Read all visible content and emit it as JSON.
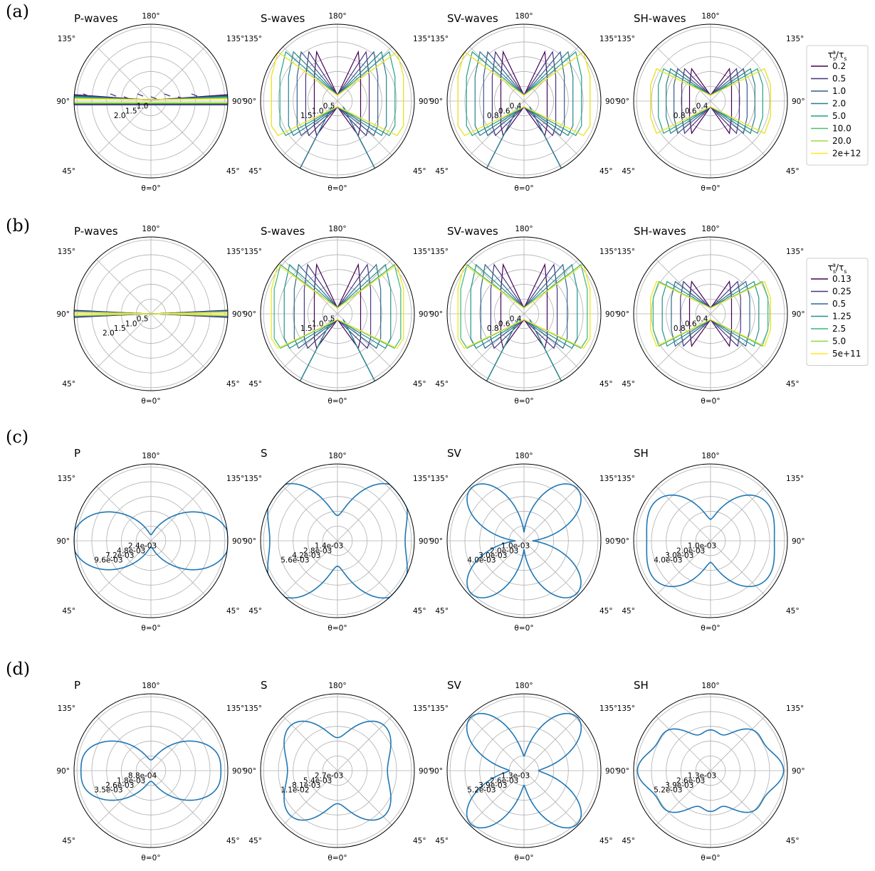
{
  "theta_label": "θ=0°",
  "angle_labels": {
    "top": "180°",
    "left": "90°",
    "right": "90°",
    "ul": "135°",
    "ur": "135°",
    "ll": "45°",
    "lr": "45°"
  },
  "rows": [
    {
      "label": "(a)",
      "legend": {
        "title": "τsa/τs",
        "entries": [
          "0.2",
          "0.5",
          "1.0",
          "2.0",
          "5.0",
          "10.0",
          "20.0",
          "2e+12"
        ],
        "colors": [
          "#440154",
          "#46327e",
          "#365c8d",
          "#277f8e",
          "#1fa187",
          "#4ac16d",
          "#9fda3a",
          "#fde725"
        ]
      },
      "panels": [
        {
          "title": "P-waves",
          "ticks": [
            "1.0",
            "1.5",
            "2.0"
          ],
          "kind": "p_waves",
          "rmax": 2.2
        },
        {
          "title": "S-waves",
          "ticks": [
            "0.5",
            "1.0",
            "1.5"
          ],
          "kind": "s_waves",
          "rmax": 1.8
        },
        {
          "title": "SV-waves",
          "ticks": [
            "0.4",
            "0.6",
            "0.8"
          ],
          "kind": "s_waves",
          "rmax": 1.0
        },
        {
          "title": "SH-waves",
          "ticks": [
            "0.4",
            "0.6",
            "0.8"
          ],
          "kind": "sh_waves",
          "rmax": 1.0
        }
      ]
    },
    {
      "label": "(b)",
      "legend": {
        "title": "τsa/τs",
        "entries": [
          "0.13",
          "0.25",
          "0.5",
          "1.25",
          "2.5",
          "5.0",
          "5e+11"
        ],
        "colors": [
          "#440154",
          "#443983",
          "#31688e",
          "#21918c",
          "#35b779",
          "#90d743",
          "#fde725"
        ]
      },
      "panels": [
        {
          "title": "P-waves",
          "ticks": [
            "0.5",
            "1.0",
            "1.5",
            "2.0"
          ],
          "kind": "p_flat",
          "rmax": 2.2
        },
        {
          "title": "S-waves",
          "ticks": [
            "0.5",
            "1.0",
            "1.5"
          ],
          "kind": "s_waves",
          "rmax": 1.8
        },
        {
          "title": "SV-waves",
          "ticks": [
            "0.4",
            "0.6",
            "0.8"
          ],
          "kind": "s_waves",
          "rmax": 1.0
        },
        {
          "title": "SH-waves",
          "ticks": [
            "0.4",
            "0.6",
            "0.8"
          ],
          "kind": "sh_waves",
          "rmax": 1.0
        }
      ]
    },
    {
      "label": "(c)",
      "panels": [
        {
          "title": "P",
          "ticks": [
            "2.4e-03",
            "4.8e-03",
            "7.2e-03",
            "9.6e-03"
          ],
          "kind": "p_lobe",
          "rmax": 0.0098
        },
        {
          "title": "S",
          "ticks": [
            "1.4e-03",
            "2.8e-03",
            "4.2e-03",
            "5.6e-03"
          ],
          "kind": "s_lobe",
          "rmax": 0.0062
        },
        {
          "title": "SV",
          "ticks": [
            "1.0e-03",
            "2.0e-03",
            "3.0e-03",
            "4.0e-03"
          ],
          "kind": "sv_lobe",
          "rmax": 0.0048
        },
        {
          "title": "SH",
          "ticks": [
            "1.0e-03",
            "2.0e-03",
            "3.0e-03",
            "4.0e-03"
          ],
          "kind": "sh_lobe",
          "rmax": 0.0046
        }
      ]
    },
    {
      "label": "(d)",
      "panels": [
        {
          "title": "P",
          "ticks": [
            "8.8e-04",
            "1.8e-03",
            "2.6e-03",
            "3.5e-03"
          ],
          "kind": "p_lobe_d",
          "rmax": 0.0042
        },
        {
          "title": "S",
          "ticks": [
            "2.7e-03",
            "5.4e-03",
            "8.1e-03",
            "1.1e-02"
          ],
          "kind": "s_lobe_d",
          "rmax": 0.0125
        },
        {
          "title": "SV",
          "ticks": [
            "1.3e-03",
            "2.6e-03",
            "3.9e-03",
            "5.2e-03"
          ],
          "kind": "sv_lobe_d",
          "rmax": 0.0063
        },
        {
          "title": "SH",
          "ticks": [
            "1.3e-03",
            "2.6e-03",
            "3.9e-03",
            "5.2e-03"
          ],
          "kind": "sh_lobe_d",
          "rmax": 0.006
        }
      ]
    }
  ],
  "chart_data": {
    "type": "polar",
    "description_series": "radiation patterns vs polar angle θ (0° at bottom, 180° at top)",
    "line_color": "#1f77b4"
  }
}
